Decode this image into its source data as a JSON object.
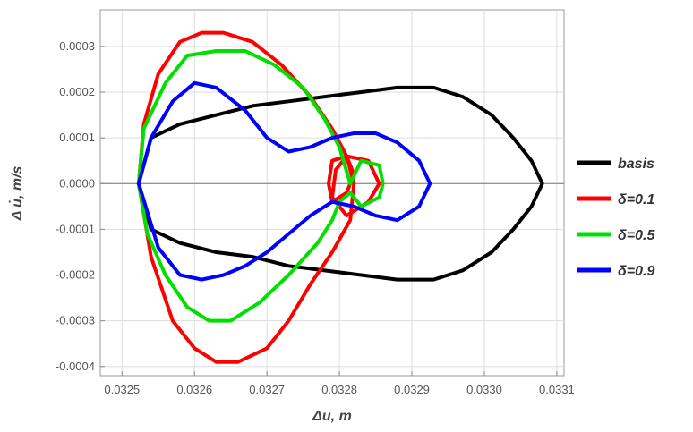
{
  "chart_data": {
    "type": "line",
    "title": "",
    "xlabel": "Δu, m",
    "ylabel": "Δ u̇, m/s",
    "xlim": [
      0.03247,
      0.03311
    ],
    "ylim": [
      -0.00042,
      0.00038
    ],
    "grid": true,
    "legend_position": "right",
    "x_ticks": [
      "0.0325",
      "0.0326",
      "0.0327",
      "0.0328",
      "0.0329",
      "0.0330",
      "0.0331"
    ],
    "x_tick_values": [
      0.0325,
      0.0326,
      0.0327,
      0.0328,
      0.0329,
      0.033,
      0.0331
    ],
    "y_ticks": [
      "0.0003",
      "0.0002",
      "0.0001",
      "0.0000",
      "-0.0001",
      "-0.0002",
      "-0.0003",
      "-0.0004"
    ],
    "y_tick_values": [
      0.0003,
      0.0002,
      0.0001,
      0.0,
      -0.0001,
      -0.0002,
      -0.0003,
      -0.0004
    ],
    "series": [
      {
        "name": "basis",
        "color": "#000000",
        "x": [
          0.032523,
          0.03254,
          0.03258,
          0.03263,
          0.03268,
          0.03273,
          0.03278,
          0.03283,
          0.03288,
          0.03293,
          0.03297,
          0.03301,
          0.03304,
          0.033065,
          0.03308,
          0.033065,
          0.03304,
          0.03301,
          0.03297,
          0.03293,
          0.03288,
          0.03283,
          0.03278,
          0.03273,
          0.03268,
          0.03263,
          0.03258,
          0.03254,
          0.032523
        ],
        "y": [
          0.0,
          0.0001,
          0.00013,
          0.00015,
          0.00017,
          0.00018,
          0.00019,
          0.0002,
          0.00021,
          0.00021,
          0.00019,
          0.00015,
          0.0001,
          5e-05,
          0.0,
          -5e-05,
          -0.0001,
          -0.00015,
          -0.00019,
          -0.00021,
          -0.00021,
          -0.0002,
          -0.00019,
          -0.00018,
          -0.00016,
          -0.00015,
          -0.00013,
          -0.0001,
          0.0
        ]
      },
      {
        "name": "δ=0.1",
        "color": "#ff0000",
        "x": [
          0.032523,
          0.03253,
          0.03255,
          0.03258,
          0.03261,
          0.03264,
          0.03268,
          0.03272,
          0.03276,
          0.03279,
          0.03281,
          0.03282,
          0.03281,
          0.03279,
          0.032785,
          0.03279,
          0.03281,
          0.03284,
          0.032855,
          0.03284,
          0.03281,
          0.03279,
          0.032795,
          0.03281,
          0.03282,
          0.032815,
          0.03279,
          0.03276,
          0.03273,
          0.0327,
          0.03266,
          0.03263,
          0.0326,
          0.03257,
          0.03254,
          0.032523
        ],
        "y": [
          0.0,
          0.00013,
          0.00024,
          0.00031,
          0.00033,
          0.00033,
          0.00031,
          0.00026,
          0.00019,
          0.00012,
          6e-05,
          2e-05,
          -2e-05,
          -4e-05,
          0.0,
          5e-05,
          6e-05,
          5e-05,
          0.0,
          -4e-05,
          -7e-05,
          -3e-05,
          3e-05,
          6e-05,
          0.0,
          -8e-05,
          -0.00015,
          -0.00022,
          -0.0003,
          -0.00036,
          -0.00039,
          -0.00039,
          -0.00036,
          -0.0003,
          -0.00016,
          0.0
        ]
      },
      {
        "name": "δ=0.5",
        "color": "#00e000",
        "x": [
          0.032523,
          0.03253,
          0.03256,
          0.03259,
          0.03263,
          0.03267,
          0.03271,
          0.03275,
          0.03278,
          0.0328,
          0.032815,
          0.03283,
          0.032855,
          0.03286,
          0.032855,
          0.03283,
          0.032815,
          0.0328,
          0.03279,
          0.03277,
          0.03273,
          0.03269,
          0.03265,
          0.03262,
          0.03259,
          0.03256,
          0.032535,
          0.032523
        ],
        "y": [
          0.0,
          0.00012,
          0.00022,
          0.00028,
          0.00029,
          0.00029,
          0.00026,
          0.00021,
          0.00014,
          8e-05,
          0.0,
          5e-05,
          4e-05,
          0.0,
          -3e-05,
          -5e-05,
          -2e-05,
          -4e-05,
          -8e-05,
          -0.00013,
          -0.0002,
          -0.00026,
          -0.0003,
          -0.0003,
          -0.00027,
          -0.0002,
          -0.00011,
          0.0
        ]
      },
      {
        "name": "δ=0.9",
        "color": "#0000ff",
        "x": [
          0.032523,
          0.03254,
          0.03257,
          0.0326,
          0.03263,
          0.03267,
          0.0327,
          0.03273,
          0.03276,
          0.03279,
          0.03282,
          0.03285,
          0.03288,
          0.03291,
          0.032925,
          0.03291,
          0.03288,
          0.03285,
          0.03282,
          0.03279,
          0.03276,
          0.03273,
          0.0327,
          0.03267,
          0.03264,
          0.03261,
          0.03258,
          0.03255,
          0.032523
        ],
        "y": [
          0.0,
          0.0001,
          0.00018,
          0.00022,
          0.00021,
          0.00016,
          0.0001,
          7e-05,
          8e-05,
          0.0001,
          0.00011,
          0.00011,
          9e-05,
          5e-05,
          0.0,
          -5e-05,
          -8e-05,
          -7e-05,
          -5e-05,
          -4e-05,
          -7e-05,
          -0.00011,
          -0.00015,
          -0.00018,
          -0.0002,
          -0.00021,
          -0.0002,
          -0.00014,
          0.0
        ]
      }
    ]
  }
}
